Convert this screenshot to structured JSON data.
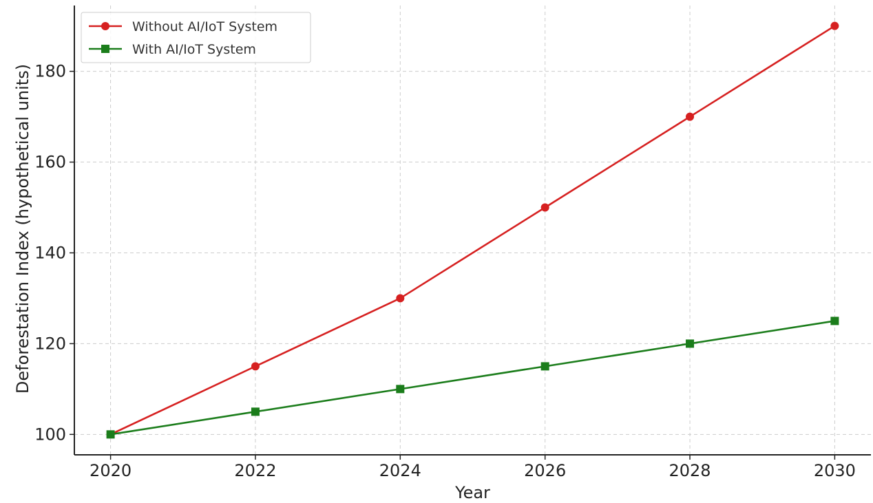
{
  "chart_data": {
    "type": "line",
    "title": "",
    "xlabel": "Year",
    "ylabel": "Deforestation Index (hypothetical units)",
    "x": [
      2020,
      2022,
      2024,
      2026,
      2028,
      2030
    ],
    "xlim": [
      2019.5,
      2030.5
    ],
    "ylim": [
      95.5,
      194.5
    ],
    "xticks": [
      2020,
      2022,
      2024,
      2026,
      2028,
      2030
    ],
    "yticks": [
      100,
      120,
      140,
      160,
      180
    ],
    "grid": true,
    "legend_position": "upper-left",
    "series": [
      {
        "name": "Without AI/IoT System",
        "values": [
          100,
          115,
          130,
          150,
          170,
          190
        ],
        "color": "#d62020",
        "marker": "circle"
      },
      {
        "name": "With AI/IoT System",
        "values": [
          100,
          105,
          110,
          115,
          120,
          125
        ],
        "color": "#1b7d1b",
        "marker": "square"
      }
    ]
  }
}
